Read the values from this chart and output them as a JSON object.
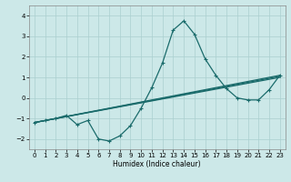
{
  "title": "",
  "xlabel": "Humidex (Indice chaleur)",
  "bg_color": "#cce8e8",
  "line_color": "#1a6b6b",
  "xlim": [
    -0.5,
    23.5
  ],
  "ylim": [
    -2.5,
    4.5
  ],
  "xticks": [
    0,
    1,
    2,
    3,
    4,
    5,
    6,
    7,
    8,
    9,
    10,
    11,
    12,
    13,
    14,
    15,
    16,
    17,
    18,
    19,
    20,
    21,
    22,
    23
  ],
  "yticks": [
    -2,
    -1,
    0,
    1,
    2,
    3,
    4
  ],
  "series": [
    {
      "x": [
        0,
        1,
        2,
        3,
        4,
        5,
        6,
        7,
        8,
        9,
        10,
        11,
        12,
        13,
        14,
        15,
        16,
        17,
        18,
        19,
        20,
        21,
        22,
        23
      ],
      "y": [
        -1.2,
        -1.1,
        -1.0,
        -0.85,
        -1.3,
        -1.1,
        -2.0,
        -2.1,
        -1.85,
        -1.35,
        -0.5,
        0.5,
        1.7,
        3.3,
        3.75,
        3.1,
        1.9,
        1.1,
        0.45,
        0.0,
        -0.1,
        -0.1,
        0.4,
        1.1
      ],
      "marker": "+",
      "lw": 0.9
    },
    {
      "x": [
        0,
        23
      ],
      "y": [
        -1.2,
        1.1
      ],
      "marker": null,
      "lw": 0.9
    },
    {
      "x": [
        0,
        23
      ],
      "y": [
        -1.2,
        1.05
      ],
      "marker": null,
      "lw": 0.9
    },
    {
      "x": [
        0,
        23
      ],
      "y": [
        -1.2,
        1.0
      ],
      "marker": null,
      "lw": 0.9
    }
  ]
}
